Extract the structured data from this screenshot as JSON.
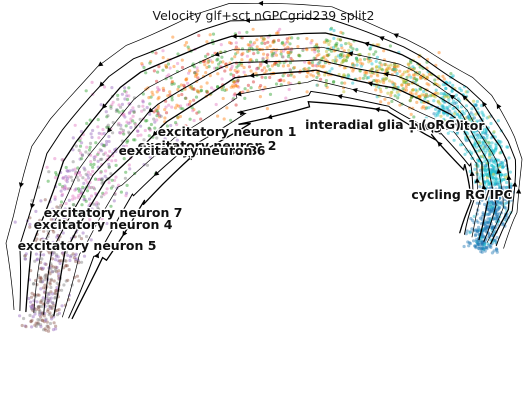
{
  "chart_data": {
    "type": "scatter",
    "title": "Velocity glf+sct nGPCgrid239 split2",
    "xlabel": "",
    "ylabel": "",
    "legend": "on data",
    "grid": false,
    "axes_visible": false,
    "overlay": "velocity streamlines with arrowheads",
    "clusters": [
      {
        "name": "excitatory neuron 1",
        "color": "#ff7f0e"
      },
      {
        "name": "excitatory neuron 2",
        "color": "#2ca02c"
      },
      {
        "name": "excitatory neuron 3",
        "color": "#d62728"
      },
      {
        "name": "excitatory neuron 4",
        "color": "#9467bd"
      },
      {
        "name": "excitatory neuron 5",
        "color": "#8c564b"
      },
      {
        "name": "excitatory neuron 6",
        "color": "#e377c2"
      },
      {
        "name": "excitatory neuron 7",
        "color": "#7f7f7f"
      },
      {
        "name": "interadial glia 1 (oRG)",
        "color": "#bcbd22"
      },
      {
        "name": "progenitor",
        "color": "#17becf"
      },
      {
        "name": "cycling RG/IPC",
        "color": "#1f77b4"
      }
    ]
  }
}
